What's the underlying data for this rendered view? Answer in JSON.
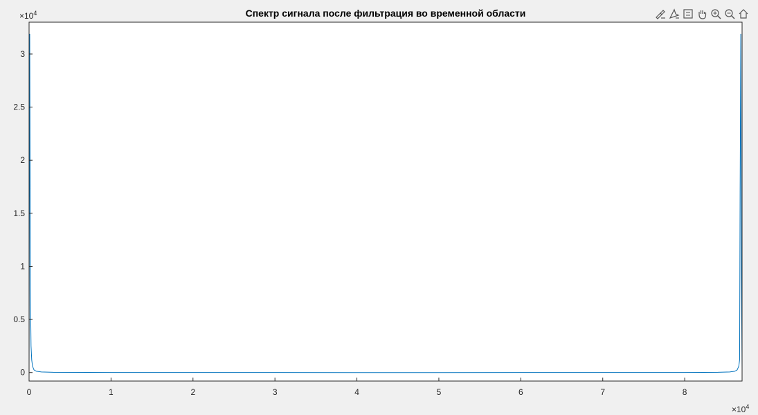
{
  "chart_data": {
    "type": "line",
    "title": "Спектр сигнала после фильтрация во временной области",
    "xlabel": "",
    "ylabel": "",
    "xlim": [
      0,
      87000
    ],
    "ylim": [
      -800,
      33000
    ],
    "x_exponent_label": "×10",
    "x_exponent_power": "4",
    "y_exponent_label": "×10",
    "y_exponent_power": "4",
    "x_ticks": [
      {
        "value": 0,
        "label": "0"
      },
      {
        "value": 10000,
        "label": "1"
      },
      {
        "value": 20000,
        "label": "2"
      },
      {
        "value": 30000,
        "label": "3"
      },
      {
        "value": 40000,
        "label": "4"
      },
      {
        "value": 50000,
        "label": "5"
      },
      {
        "value": 60000,
        "label": "6"
      },
      {
        "value": 70000,
        "label": "7"
      },
      {
        "value": 80000,
        "label": "8"
      }
    ],
    "y_ticks": [
      {
        "value": 0,
        "label": "0"
      },
      {
        "value": 5000,
        "label": "0.5"
      },
      {
        "value": 10000,
        "label": "1"
      },
      {
        "value": 15000,
        "label": "1.5"
      },
      {
        "value": 20000,
        "label": "2"
      },
      {
        "value": 25000,
        "label": "2.5"
      },
      {
        "value": 30000,
        "label": "3"
      }
    ],
    "grid": false,
    "line_color": "#0072bd",
    "series": [
      {
        "x": [
          0,
          80,
          160,
          240,
          320,
          420,
          600,
          900,
          1500,
          3000,
          10000,
          20000,
          30000,
          40000,
          43500,
          50000,
          60000,
          70000,
          80000,
          84000,
          85500,
          86100,
          86400,
          86600,
          86700,
          86760,
          86840,
          86920,
          87000
        ],
        "values": [
          300,
          31900,
          8000,
          2500,
          1200,
          600,
          250,
          120,
          60,
          25,
          8,
          5,
          4,
          3,
          3,
          3,
          4,
          5,
          8,
          25,
          60,
          120,
          250,
          600,
          1200,
          17000,
          31900,
          9000,
          300
        ]
      }
    ]
  },
  "toolbar": {
    "icons": [
      "brush-icon",
      "data-tips-icon",
      "legend-icon",
      "pan-icon",
      "zoom-in-icon",
      "zoom-out-icon",
      "home-icon"
    ]
  }
}
